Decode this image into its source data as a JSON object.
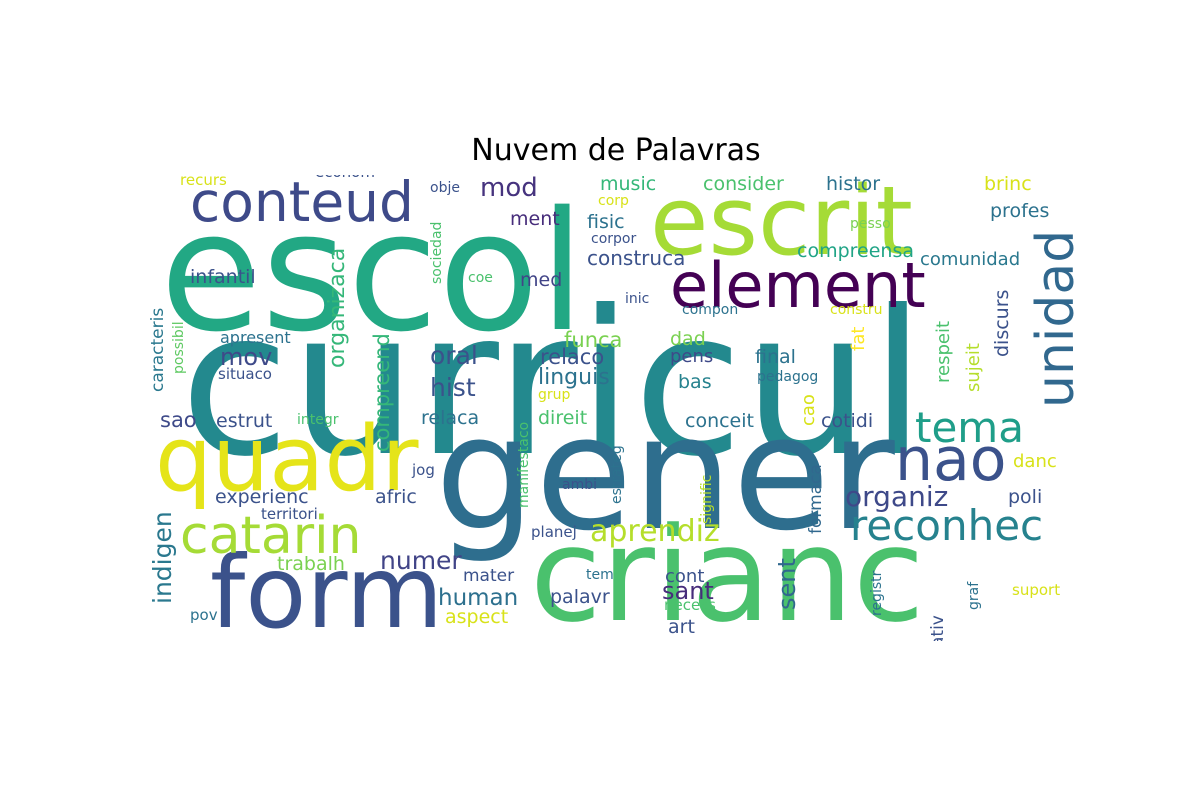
{
  "chart_data": {
    "type": "wordcloud",
    "title": "Nuvem de Palavras",
    "words": [
      {
        "text": "curricul",
        "color": "#23898e"
      },
      {
        "text": "escol",
        "color": "#22a884"
      },
      {
        "text": "gener",
        "color": "#2e6e8e"
      },
      {
        "text": "crianc",
        "color": "#4ac16d"
      },
      {
        "text": "form",
        "color": "#3b528b"
      },
      {
        "text": "quadr",
        "color": "#e5e419"
      },
      {
        "text": "escrit",
        "color": "#a5db36"
      },
      {
        "text": "element",
        "color": "#440154"
      },
      {
        "text": "conteud",
        "color": "#3e4a89"
      },
      {
        "text": "unidad",
        "color": "#31688e"
      },
      {
        "text": "nao",
        "color": "#3b528b"
      },
      {
        "text": "catarin",
        "color": "#a5db36"
      },
      {
        "text": "reconhec",
        "color": "#26828e"
      },
      {
        "text": "tema",
        "color": "#1f9e89"
      },
      {
        "text": "organiz",
        "color": "#3e4989"
      },
      {
        "text": "aprendiz",
        "color": "#b5de2b"
      },
      {
        "text": "oral",
        "color": "#3b528b"
      },
      {
        "text": "hist",
        "color": "#3b528b"
      },
      {
        "text": "mov",
        "color": "#3e4a89"
      },
      {
        "text": "mod",
        "color": "#46337e"
      },
      {
        "text": "numer",
        "color": "#414487"
      },
      {
        "text": "human",
        "color": "#2d708e"
      },
      {
        "text": "sant",
        "color": "#472d7b"
      },
      {
        "text": "sent",
        "color": "#31688e"
      },
      {
        "text": "indigen",
        "color": "#2a788e"
      },
      {
        "text": "organizaca",
        "color": "#35b779"
      },
      {
        "text": "compreend",
        "color": "#35b779"
      },
      {
        "text": "linguis",
        "color": "#2c728e"
      },
      {
        "text": "relaco",
        "color": "#3b528b"
      },
      {
        "text": "funca",
        "color": "#7ad151"
      },
      {
        "text": "construca",
        "color": "#3b528b"
      },
      {
        "text": "compreensa",
        "color": "#20a486"
      },
      {
        "text": "consider",
        "color": "#4ac16d"
      },
      {
        "text": "histor",
        "color": "#2c728e"
      },
      {
        "text": "music",
        "color": "#35b779"
      },
      {
        "text": "ment",
        "color": "#472d7b"
      },
      {
        "text": "fisic",
        "color": "#2c728e"
      },
      {
        "text": "brinc",
        "color": "#d8e219"
      },
      {
        "text": "profes",
        "color": "#2c728e"
      },
      {
        "text": "comunidad",
        "color": "#2a788e"
      },
      {
        "text": "infantil",
        "color": "#3b528b"
      },
      {
        "text": "med",
        "color": "#414487"
      },
      {
        "text": "discurs",
        "color": "#3b528b"
      },
      {
        "text": "respeit",
        "color": "#4ac16d"
      },
      {
        "text": "sujeit",
        "color": "#b5de2b"
      },
      {
        "text": "fat",
        "color": "#fde725"
      },
      {
        "text": "dad",
        "color": "#7ad151"
      },
      {
        "text": "pens",
        "color": "#3e4989"
      },
      {
        "text": "final",
        "color": "#2c728e"
      },
      {
        "text": "bas",
        "color": "#26828e"
      },
      {
        "text": "sao",
        "color": "#3e4a89"
      },
      {
        "text": "estrut",
        "color": "#3b528b"
      },
      {
        "text": "relaca",
        "color": "#2c728e"
      },
      {
        "text": "direit",
        "color": "#4ac16d"
      },
      {
        "text": "conceit",
        "color": "#2c728e"
      },
      {
        "text": "cao",
        "color": "#d8e219"
      },
      {
        "text": "cotidi",
        "color": "#3b528b"
      },
      {
        "text": "experienc",
        "color": "#3b528b"
      },
      {
        "text": "afric",
        "color": "#3b528b"
      },
      {
        "text": "danc",
        "color": "#d8e219"
      },
      {
        "text": "poli",
        "color": "#3b528b"
      },
      {
        "text": "formaca",
        "color": "#31688e"
      },
      {
        "text": "trabalh",
        "color": "#7ad151"
      },
      {
        "text": "mater",
        "color": "#3b528b"
      },
      {
        "text": "cont",
        "color": "#3b528b"
      },
      {
        "text": "palavr",
        "color": "#3b528b"
      },
      {
        "text": "art",
        "color": "#3b528b"
      },
      {
        "text": "aspect",
        "color": "#d8e219"
      },
      {
        "text": "caracteris",
        "color": "#2a788e"
      },
      {
        "text": "possibil",
        "color": "#5ec962"
      },
      {
        "text": "apresent",
        "color": "#2c728e"
      },
      {
        "text": "situaco",
        "color": "#3b528b"
      },
      {
        "text": "integr",
        "color": "#4ac16d"
      },
      {
        "text": "sociedad",
        "color": "#4ac16d"
      },
      {
        "text": "coe",
        "color": "#4ac16d"
      },
      {
        "text": "obje",
        "color": "#3b528b"
      },
      {
        "text": "corp",
        "color": "#d8e219"
      },
      {
        "text": "corpor",
        "color": "#3b528b"
      },
      {
        "text": "inic",
        "color": "#3b528b"
      },
      {
        "text": "compon",
        "color": "#2c728e"
      },
      {
        "text": "pesso",
        "color": "#7ad151"
      },
      {
        "text": "constru",
        "color": "#d8e219"
      },
      {
        "text": "pedagog",
        "color": "#2c728e"
      },
      {
        "text": "recurs",
        "color": "#d8e219"
      },
      {
        "text": "econom",
        "color": "#3b528b"
      },
      {
        "text": "grup",
        "color": "#d8e219"
      },
      {
        "text": "manifestaco",
        "color": "#4ac16d"
      },
      {
        "text": "estrateg",
        "color": "#2c728e"
      },
      {
        "text": "signific",
        "color": "#b5de2b"
      },
      {
        "text": "jog",
        "color": "#3b528b"
      },
      {
        "text": "ambi",
        "color": "#3b528b"
      },
      {
        "text": "territori",
        "color": "#3b528b"
      },
      {
        "text": "planej",
        "color": "#3b528b"
      },
      {
        "text": "tem",
        "color": "#2c728e"
      },
      {
        "text": "necess",
        "color": "#4ac16d"
      },
      {
        "text": "pov",
        "color": "#2c728e"
      },
      {
        "text": "registr",
        "color": "#2c728e"
      },
      {
        "text": "ativ",
        "color": "#3b528b"
      },
      {
        "text": "graf",
        "color": "#2c728e"
      },
      {
        "text": "suport",
        "color": "#d8e219"
      }
    ]
  }
}
